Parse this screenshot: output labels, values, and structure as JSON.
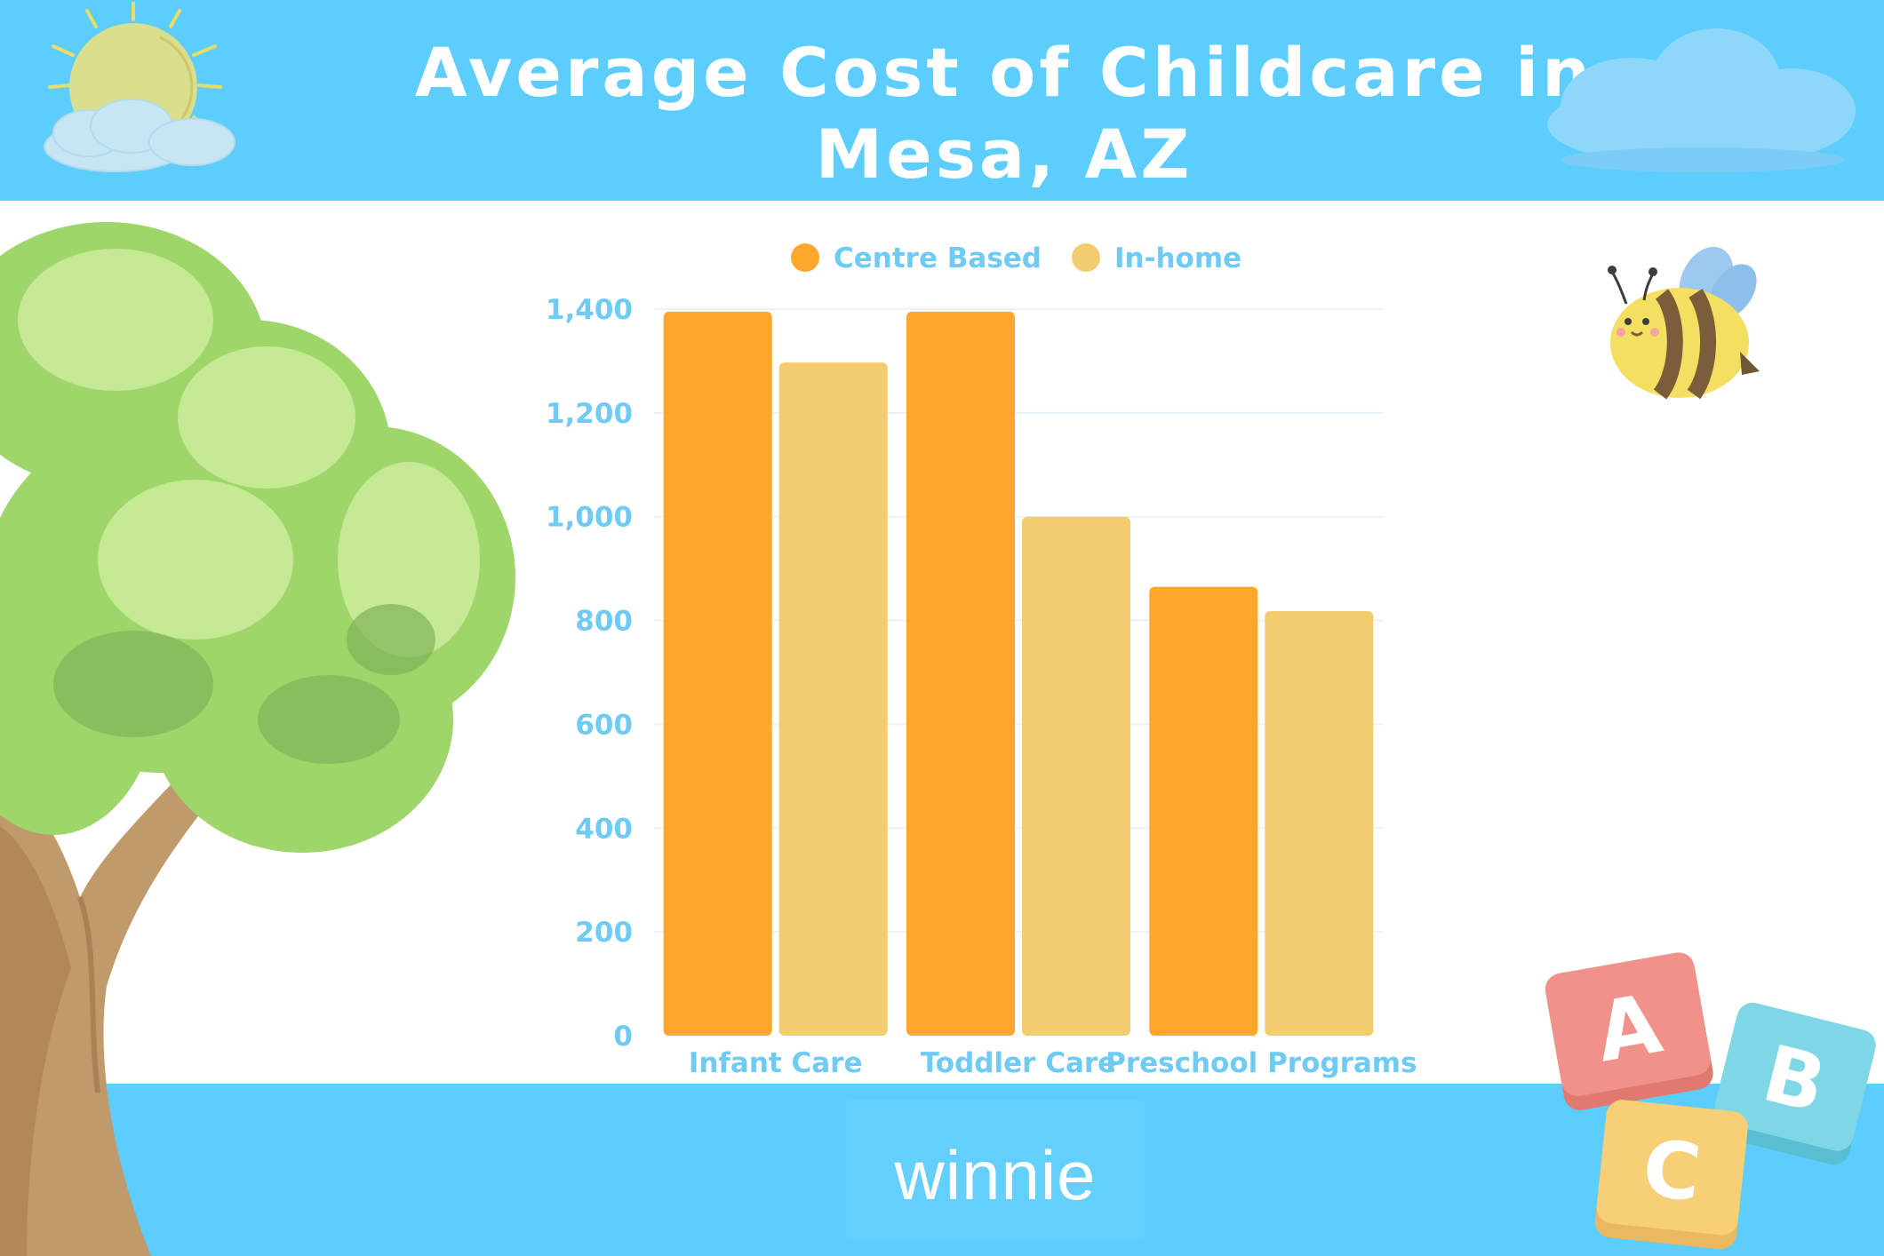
{
  "header": {
    "title_line1": "Average Cost of Childcare in",
    "title_line2": "Mesa, AZ"
  },
  "footer": {
    "logo": "winnie"
  },
  "colors": {
    "header_bg": "#5ccdfd",
    "centre_based": "#ffa62c",
    "in_home": "#f2cc6e",
    "axis_text": "#6fcbf3"
  },
  "decorations": [
    "sun-icon",
    "cloud-icon",
    "tree-icon",
    "bee-icon",
    "abc-blocks-icon"
  ],
  "chart_data": {
    "type": "bar",
    "title": "Average Cost of Childcare in Mesa, AZ",
    "xlabel": "",
    "ylabel": "",
    "categories": [
      "Infant Care",
      "Toddler Care",
      "Preschool Programs"
    ],
    "series": [
      {
        "name": "Centre Based",
        "values": [
          1395,
          1395,
          865
        ],
        "color": "#ffa62c"
      },
      {
        "name": "In-home",
        "values": [
          1297,
          1000,
          818
        ],
        "color": "#f2cc6e"
      }
    ],
    "ylim": [
      0,
      1400
    ],
    "yticks": [
      0,
      200,
      400,
      600,
      800,
      1000,
      1200,
      1400
    ],
    "ytick_labels": [
      "0",
      "200",
      "400",
      "600",
      "800",
      "1,000",
      "1,200",
      "1,400"
    ],
    "grid": true,
    "legend": "top-center"
  }
}
